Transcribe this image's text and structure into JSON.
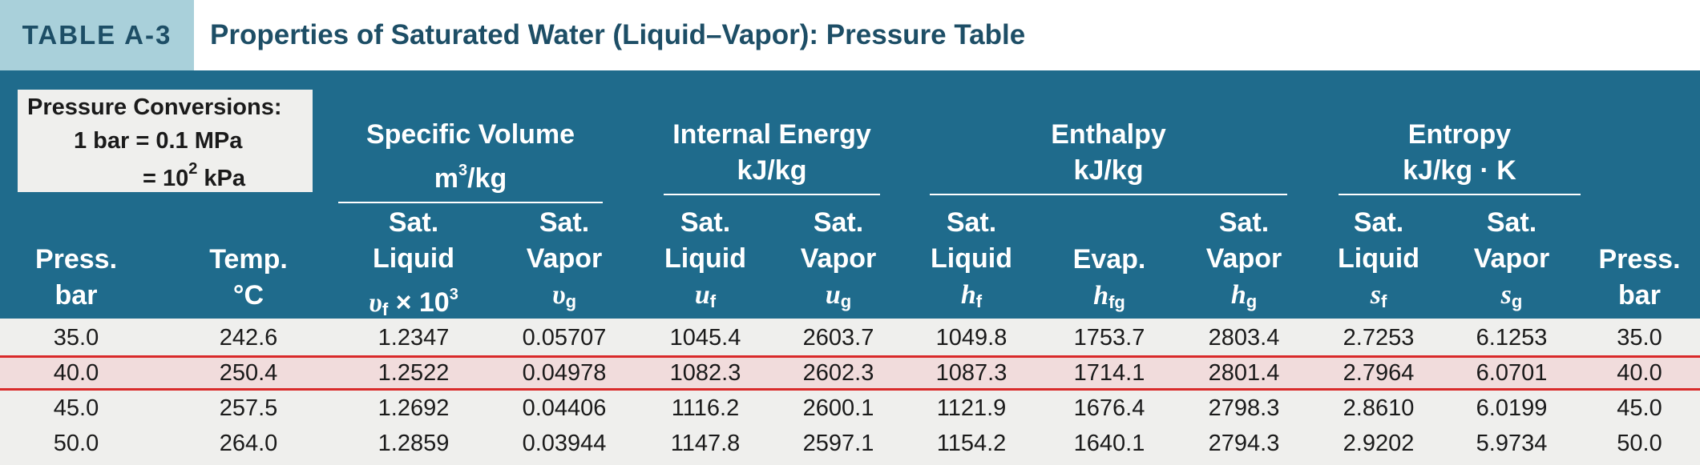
{
  "tag": "TABLE A-3",
  "title": "Properties of Saturated Water (Liquid–Vapor): Pressure Table",
  "conversions": {
    "heading": "Pressure Conversions:",
    "line1": "1 bar = 0.1 MPa",
    "line2_prefix": "= 10",
    "line2_exp": "2",
    "line2_suffix": " kPa"
  },
  "groups": {
    "specific_volume": {
      "name": "Specific Volume",
      "unit_base": "m",
      "unit_exp": "3",
      "unit_rest": "/kg"
    },
    "internal_energy": {
      "name": "Internal Energy",
      "unit": "kJ/kg"
    },
    "enthalpy": {
      "name": "Enthalpy",
      "unit": "kJ/kg"
    },
    "entropy": {
      "name": "Entropy",
      "unit": "kJ/kg · K"
    }
  },
  "columns": {
    "press_left": {
      "l1": "Press.",
      "l2": "bar"
    },
    "temp": {
      "l1": "Temp.",
      "l2": "°C"
    },
    "vf": {
      "l1": "Sat.",
      "l2": "Liquid",
      "sym": "υ",
      "sub": "f",
      "times": " × 10",
      "exp": "3"
    },
    "vg": {
      "l1": "Sat.",
      "l2": "Vapor",
      "sym": "υ",
      "sub": "g"
    },
    "uf": {
      "l1": "Sat.",
      "l2": "Liquid",
      "sym": "u",
      "sub": "f"
    },
    "ug": {
      "l1": "Sat.",
      "l2": "Vapor",
      "sym": "u",
      "sub": "g"
    },
    "hf": {
      "l1": "Sat.",
      "l2": "Liquid",
      "sym": "h",
      "sub": "f"
    },
    "hfg": {
      "l2": "Evap.",
      "sym": "h",
      "sub": "fg"
    },
    "hg": {
      "l1": "Sat.",
      "l2": "Vapor",
      "sym": "h",
      "sub": "g"
    },
    "sf": {
      "l1": "Sat.",
      "l2": "Liquid",
      "sym": "s",
      "sub": "f"
    },
    "sg": {
      "l1": "Sat.",
      "l2": "Vapor",
      "sym": "s",
      "sub": "g"
    },
    "press_right": {
      "l1": "Press.",
      "l2": "bar"
    }
  },
  "rows": [
    [
      "35.0",
      "242.6",
      "1.2347",
      "0.05707",
      "1045.4",
      "2603.7",
      "1049.8",
      "1753.7",
      "2803.4",
      "2.7253",
      "6.1253",
      "35.0"
    ],
    [
      "40.0",
      "250.4",
      "1.2522",
      "0.04978",
      "1082.3",
      "2602.3",
      "1087.3",
      "1714.1",
      "2801.4",
      "2.7964",
      "6.0701",
      "40.0"
    ],
    [
      "45.0",
      "257.5",
      "1.2692",
      "0.04406",
      "1116.2",
      "2600.1",
      "1121.9",
      "1676.4",
      "2798.3",
      "2.8610",
      "6.0199",
      "45.0"
    ],
    [
      "50.0",
      "264.0",
      "1.2859",
      "0.03944",
      "1147.8",
      "2597.1",
      "1154.2",
      "1640.1",
      "2794.3",
      "2.9202",
      "5.9734",
      "50.0"
    ]
  ],
  "highlighted_row": 1,
  "colors": {
    "header_bg": "#1f6b8c",
    "tag_bg": "#a9d0da",
    "title_text": "#1d4e66",
    "highlight_bg": "#f1dcdc",
    "highlight_border": "#d92a2a"
  }
}
